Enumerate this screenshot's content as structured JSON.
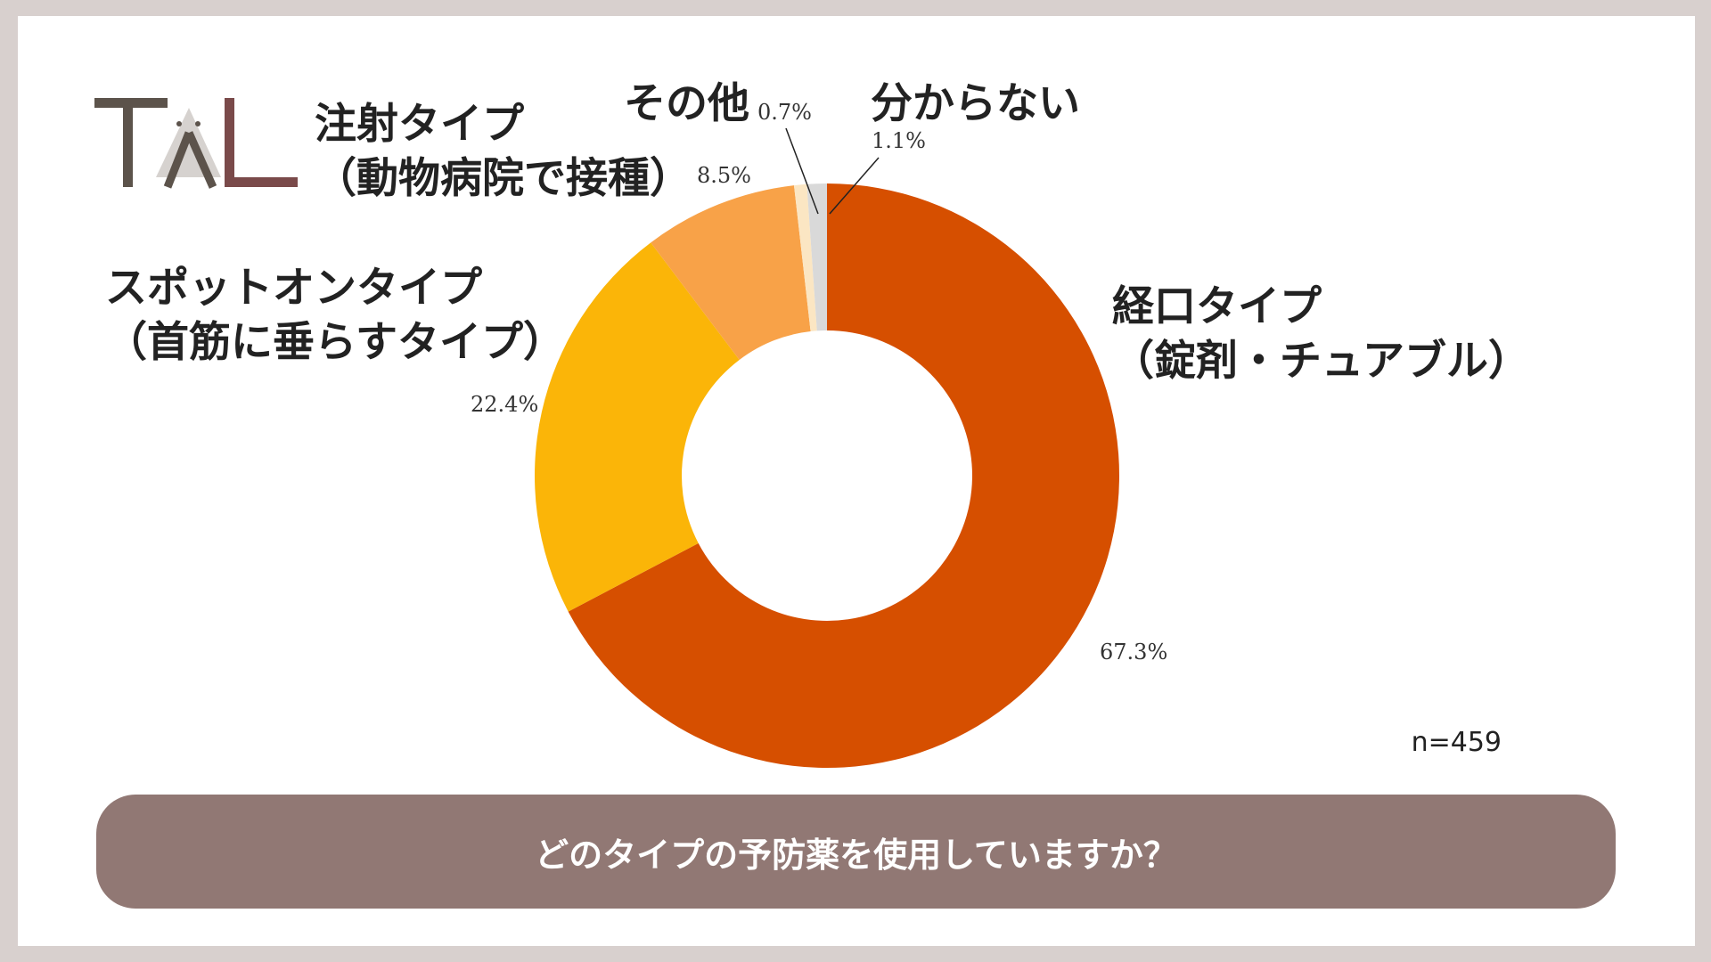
{
  "logo": {
    "text": "TAL",
    "colors": {
      "dark": "#5c534b",
      "accent": "#7a4a4a",
      "grey": "#d6d2cf"
    }
  },
  "chart_data": {
    "type": "pie",
    "donut": true,
    "slices": [
      {
        "label": "経口タイプ\n（錠剤・チュアブル）",
        "value": 67.3,
        "value_label": "67.3%",
        "color": "#d64f00"
      },
      {
        "label": "スポットオンタイプ\n（首筋に垂らすタイプ）",
        "value": 22.4,
        "value_label": "22.4%",
        "color": "#fbb508"
      },
      {
        "label": "注射タイプ\n（動物病院で接種）",
        "value": 8.5,
        "value_label": "8.5%",
        "color": "#f8a248"
      },
      {
        "label": "その他",
        "value": 0.7,
        "value_label": "0.7%",
        "color": "#fbe6c3"
      },
      {
        "label": "分からない",
        "value": 1.1,
        "value_label": "1.1%",
        "color": "#d9d9d9"
      }
    ]
  },
  "sample_size": "n=459",
  "question": "どのタイプの予防薬を使用していますか？"
}
